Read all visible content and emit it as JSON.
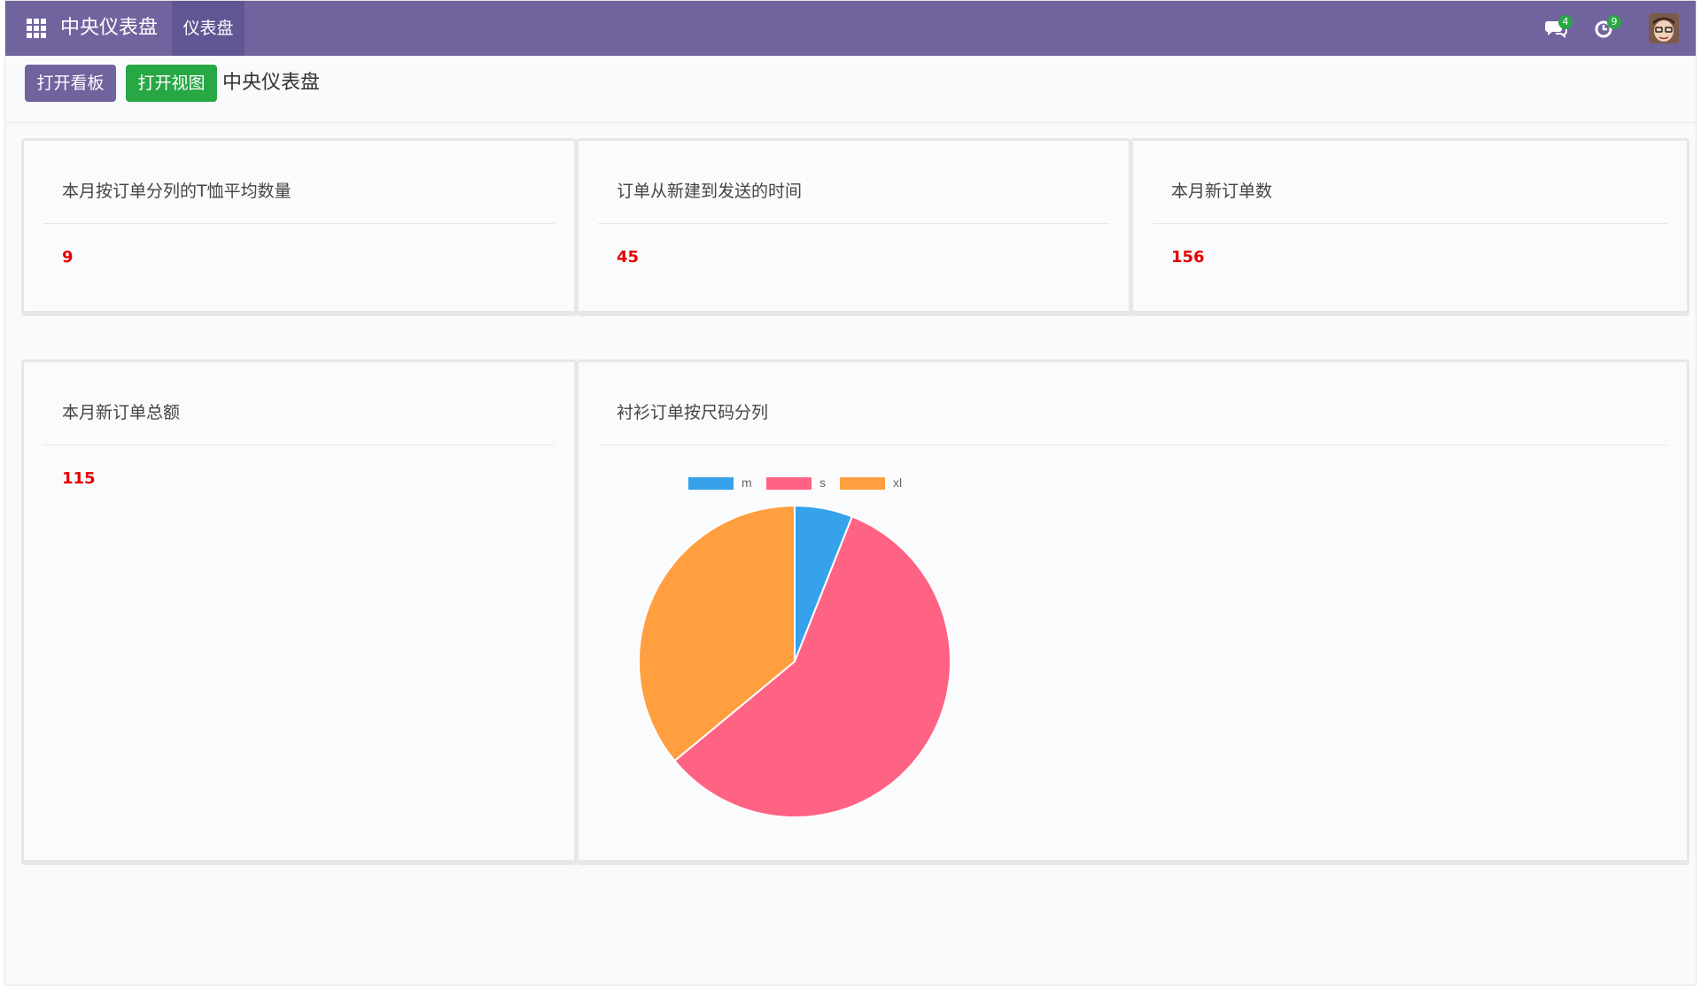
{
  "navbar": {
    "app_title": "中央仪表盘",
    "menu_item": "仪表盘",
    "chat_badge": "4",
    "activity_badge": "9",
    "color": "#71639e"
  },
  "control_panel": {
    "btn_kanban": "打开看板",
    "btn_view": "打开视图",
    "page_title": "中央仪表盘"
  },
  "cards": [
    {
      "title": "本月按订单分列的T恤平均数量",
      "value": "9"
    },
    {
      "title": "订单从新建到发送的时间",
      "value": "45"
    },
    {
      "title": "本月新订单数",
      "value": "156"
    },
    {
      "title": "本月新订单总额",
      "value": "115"
    }
  ],
  "chart_card": {
    "title": "衬衫订单按尺码分列"
  },
  "chart_data": {
    "type": "pie",
    "title": "",
    "categories": [
      "m",
      "s",
      "xl"
    ],
    "values": [
      6,
      58,
      36
    ],
    "colors": [
      "#36a2eb",
      "#ff6384",
      "#ff9f40"
    ],
    "legend": "top-left"
  }
}
